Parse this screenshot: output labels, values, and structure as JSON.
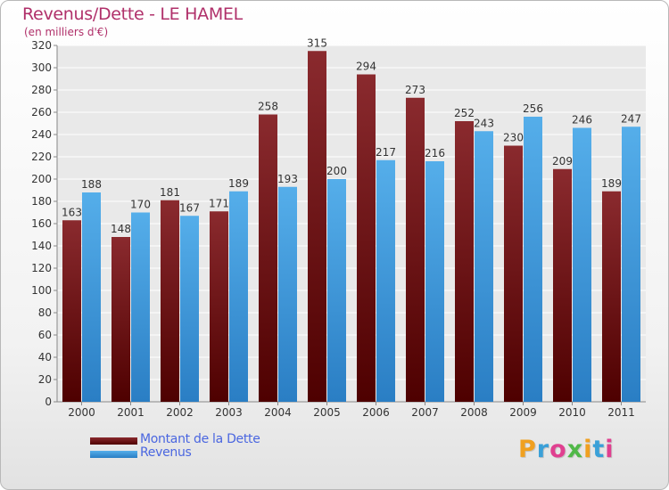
{
  "header": {
    "title": "Revenus/Dette - LE HAMEL",
    "subtitle": "(en milliers d'€)"
  },
  "logo": {
    "letters": [
      "P",
      "r",
      "o",
      "x",
      "i",
      "t",
      "i"
    ],
    "colors": [
      "#f0a020",
      "#3aa0d8",
      "#e04090",
      "#50b848",
      "#f0a020",
      "#3aa0d8",
      "#e04090"
    ]
  },
  "chart_data": {
    "type": "bar",
    "categories": [
      "2000",
      "2001",
      "2002",
      "2003",
      "2004",
      "2005",
      "2006",
      "2007",
      "2008",
      "2009",
      "2010",
      "2011"
    ],
    "series": [
      {
        "name": "Montant de la Dette",
        "color": "#7a1a1e",
        "values": [
          163,
          148,
          181,
          171,
          258,
          315,
          294,
          273,
          252,
          230,
          209,
          189
        ]
      },
      {
        "name": "Revenus",
        "color": "#3f9ede",
        "values": [
          188,
          170,
          167,
          189,
          193,
          200,
          217,
          216,
          243,
          256,
          246,
          247
        ]
      }
    ],
    "ylim": [
      0,
      320
    ],
    "yticks": [
      0,
      20,
      40,
      60,
      80,
      100,
      120,
      140,
      160,
      180,
      200,
      220,
      240,
      260,
      280,
      300,
      320
    ],
    "grid": true,
    "legend_position": "bottom-left"
  }
}
